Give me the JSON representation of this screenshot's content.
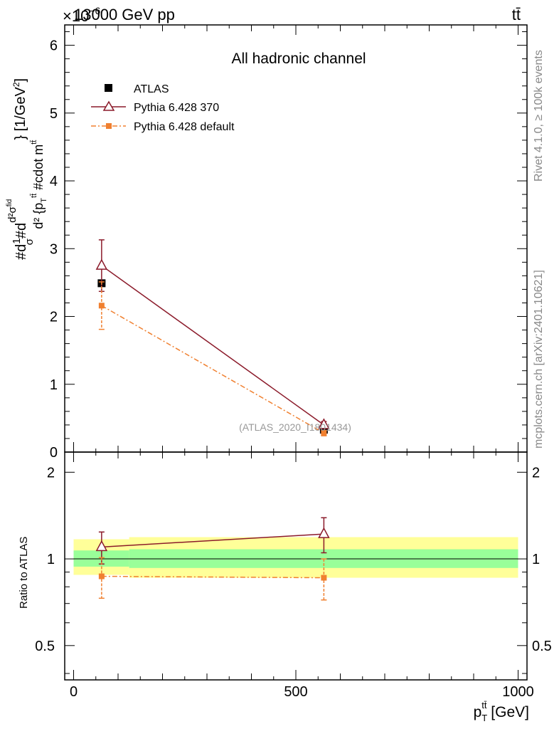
{
  "header": {
    "energy": "13000 GeV pp",
    "process": "tt̄",
    "exponent": "×10",
    "exponent_power": "−6"
  },
  "side_labels": {
    "rivet": "Rivet 4.1.0, ≥ 100k events",
    "mcplots": "mcplots.cern.ch [arXiv:2401.10621]"
  },
  "chart_data": [
    {
      "type": "line",
      "title": "All hadronic channel",
      "ylabel": "#d\\frac{1}{σ}#d\\frac{d^2σ^{fid}}{d^2 {p_T^{tt̄} #cdot m^{tt̄}}} [1/GeV^2]",
      "ylabel_parts": {
        "d": "#d",
        "one": "1",
        "sigma": "σ",
        "frac_top": "d²σ",
        "frac_top_sup": "fid",
        "frac_bottom": "d² {p",
        "frac_bottom_sub": "T",
        "frac_bottom_sup": "tt̄",
        "frac_bottom_rest": " #cdot m",
        "frac_bottom_rest_sup": "tt̄",
        "close": "} [1/GeV",
        "close_sup": "2",
        "close_end": "]"
      },
      "y_scale_factor": 1e-06,
      "xlim": [
        -20,
        1020
      ],
      "ylim": [
        0,
        6.3
      ],
      "yticks": [
        0,
        1,
        2,
        3,
        4,
        5,
        6
      ],
      "watermark": "(ATLAS_2020_I1801434)",
      "legend_position": "top-left",
      "series": [
        {
          "name": "ATLAS",
          "marker": "filled-square",
          "color": "#000000",
          "points": [
            {
              "x": 63,
              "y": 2.49,
              "err": 0.0
            },
            {
              "x": 563,
              "y": 0.33,
              "err": 0.0
            }
          ]
        },
        {
          "name": "Pythia 6.428 370",
          "marker": "open-triangle",
          "color": "#8b1a2a",
          "line": "solid",
          "points": [
            {
              "x": 63,
              "y": 2.75,
              "err": 0.38
            },
            {
              "x": 563,
              "y": 0.4,
              "err": 0.05
            }
          ]
        },
        {
          "name": "Pythia 6.428 default",
          "marker": "filled-square-small",
          "color": "#f08030",
          "line": "dash-dot",
          "points": [
            {
              "x": 63,
              "y": 2.16,
              "err": 0.35
            },
            {
              "x": 563,
              "y": 0.28,
              "err": 0.04
            }
          ]
        }
      ]
    },
    {
      "type": "line",
      "ylabel": "Ratio to ATLAS",
      "xlabel": "p_T^{tt̄} [GeV]",
      "xlabel_parts": {
        "p": "p",
        "sub": "T",
        "sup": "tt̄",
        "rest": " [GeV]"
      },
      "xlim": [
        -20,
        1020
      ],
      "ylim": [
        0.38,
        2.35
      ],
      "yscale": "log",
      "yticks": [
        0.5,
        1,
        2
      ],
      "ytick_labels": [
        "0.5",
        "1",
        "2"
      ],
      "xticks": [
        0,
        500,
        1000
      ],
      "xtick_labels": [
        "0",
        "500",
        "1000"
      ],
      "bands": [
        {
          "x0": 0,
          "x1": 125,
          "inner": [
            0.94,
            1.07
          ],
          "outer": [
            0.88,
            1.17
          ]
        },
        {
          "x0": 125,
          "x1": 1000,
          "inner": [
            0.93,
            1.08
          ],
          "outer": [
            0.86,
            1.19
          ]
        }
      ],
      "band_colors": {
        "inner": "#99ff99",
        "outer": "#ffff99"
      },
      "series": [
        {
          "name": "Pythia 6.428 370",
          "color": "#8b1a2a",
          "points": [
            {
              "x": 63,
              "y": 1.1,
              "err": 0.14
            },
            {
              "x": 563,
              "y": 1.22,
              "err": 0.17
            }
          ]
        },
        {
          "name": "Pythia 6.428 default",
          "color": "#f08030",
          "points": [
            {
              "x": 63,
              "y": 0.87,
              "err": 0.14
            },
            {
              "x": 563,
              "y": 0.86,
              "err": 0.14
            }
          ]
        }
      ]
    }
  ]
}
